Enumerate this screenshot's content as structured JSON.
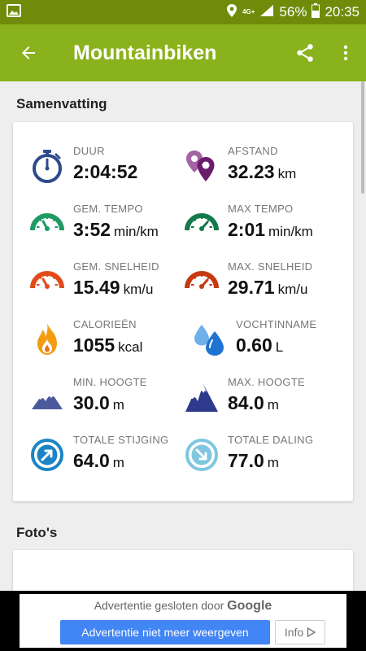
{
  "status_bar": {
    "network": "4G+",
    "battery": "56%",
    "time": "20:35"
  },
  "app_bar": {
    "title": "Mountainbiken"
  },
  "summary": {
    "title": "Samenvatting",
    "stats": [
      {
        "label": "DUUR",
        "value": "2:04:52",
        "unit": "",
        "icon": "stopwatch-icon"
      },
      {
        "label": "AFSTAND",
        "value": "32.23",
        "unit": "km",
        "icon": "location-pins-icon"
      },
      {
        "label": "GEM. TEMPO",
        "value": "3:52",
        "unit": "min/km",
        "icon": "tempo-gauge-icon"
      },
      {
        "label": "MAX TEMPO",
        "value": "2:01",
        "unit": "min/km",
        "icon": "max-tempo-gauge-icon"
      },
      {
        "label": "GEM. SNELHEID",
        "value": "15.49",
        "unit": "km/u",
        "icon": "speed-gauge-icon"
      },
      {
        "label": "MAX. SNELHEID",
        "value": "29.71",
        "unit": "km/u",
        "icon": "max-speed-gauge-icon"
      },
      {
        "label": "CALORIEËN",
        "value": "1055",
        "unit": "kcal",
        "icon": "flame-icon"
      },
      {
        "label": "VOCHTINNAME",
        "value": "0.60",
        "unit": "L",
        "icon": "water-drops-icon"
      },
      {
        "label": "MIN. HOOGTE",
        "value": "30.0",
        "unit": "m",
        "icon": "mountain-low-icon"
      },
      {
        "label": "MAX. HOOGTE",
        "value": "84.0",
        "unit": "m",
        "icon": "mountain-high-icon"
      },
      {
        "label": "TOTALE STIJGING",
        "value": "64.0",
        "unit": "m",
        "icon": "ascent-arrow-icon"
      },
      {
        "label": "TOTALE DALING",
        "value": "77.0",
        "unit": "m",
        "icon": "descent-arrow-icon"
      }
    ]
  },
  "photos": {
    "title": "Foto's"
  },
  "ad": {
    "closed_text": "Advertentie gesloten door",
    "google": "Google",
    "hide_button": "Advertentie niet meer weergeven",
    "info_button": "Info"
  },
  "colors": {
    "status_bar": "#6e8c0a",
    "app_bar": "#8ab21c",
    "duration": "#2e4a8c",
    "distance": "#8e3b8e",
    "tempo": "#1e9a63",
    "speed": "#e24a1a",
    "calories": "#f39c12",
    "water": "#2e86de",
    "altitude": "#2e3a8c",
    "ascent": "#1b84c4",
    "descent": "#7fc7e0"
  }
}
